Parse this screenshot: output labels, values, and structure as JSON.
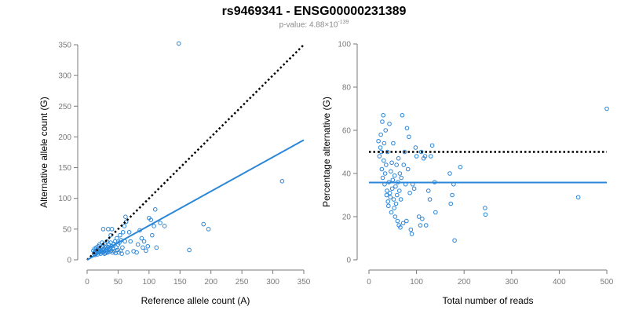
{
  "title": "rs9469341 - ENSG00000231389",
  "subtitle": {
    "prefix": "p-value: ",
    "mantissa": "4.88",
    "times": "×",
    "base": "10",
    "exponent": "-139"
  },
  "colors": {
    "points": "#2a86d8",
    "fit_line": "#2a86d8",
    "reference_line": "#000000",
    "axis": "#7a7a7a",
    "tick_label": "#7a7a7a"
  },
  "chart_data": [
    {
      "type": "scatter",
      "title": "",
      "xlabel": "Reference allele count (A)",
      "ylabel": "Alternative allele count (G)",
      "xlim": [
        0,
        350
      ],
      "ylim": [
        0,
        350
      ],
      "xticks": [
        0,
        50,
        100,
        150,
        200,
        250,
        300,
        350
      ],
      "yticks": [
        0,
        50,
        100,
        150,
        200,
        250,
        300,
        350
      ],
      "grid": false,
      "reference_line": {
        "style": "dotted",
        "from": [
          0,
          0
        ],
        "to": [
          350,
          350
        ]
      },
      "fit_line": {
        "style": "solid",
        "from": [
          0,
          0
        ],
        "to": [
          350,
          195
        ]
      },
      "points": [
        [
          10,
          15
        ],
        [
          11,
          10
        ],
        [
          12,
          12
        ],
        [
          12,
          18
        ],
        [
          13,
          8
        ],
        [
          14,
          14
        ],
        [
          15,
          20
        ],
        [
          15,
          11
        ],
        [
          16,
          16
        ],
        [
          17,
          9
        ],
        [
          18,
          13
        ],
        [
          18,
          22
        ],
        [
          19,
          17
        ],
        [
          20,
          12
        ],
        [
          20,
          25
        ],
        [
          21,
          15
        ],
        [
          22,
          10
        ],
        [
          22,
          19
        ],
        [
          23,
          14
        ],
        [
          24,
          28
        ],
        [
          24,
          21
        ],
        [
          25,
          12
        ],
        [
          25,
          16
        ],
        [
          26,
          50
        ],
        [
          26,
          23
        ],
        [
          27,
          13
        ],
        [
          27,
          18
        ],
        [
          28,
          10
        ],
        [
          28,
          26
        ],
        [
          29,
          15
        ],
        [
          30,
          20
        ],
        [
          30,
          11
        ],
        [
          31,
          17
        ],
        [
          32,
          14
        ],
        [
          32,
          30
        ],
        [
          33,
          12
        ],
        [
          34,
          50
        ],
        [
          34,
          21
        ],
        [
          35,
          16
        ],
        [
          35,
          25
        ],
        [
          36,
          13
        ],
        [
          37,
          19
        ],
        [
          38,
          28
        ],
        [
          38,
          40
        ],
        [
          39,
          15
        ],
        [
          40,
          50
        ],
        [
          40,
          22
        ],
        [
          41,
          12
        ],
        [
          42,
          18
        ],
        [
          43,
          26
        ],
        [
          44,
          14
        ],
        [
          45,
          30
        ],
        [
          46,
          11
        ],
        [
          47,
          20
        ],
        [
          48,
          35
        ],
        [
          49,
          16
        ],
        [
          50,
          25
        ],
        [
          51,
          12
        ],
        [
          52,
          28
        ],
        [
          53,
          40
        ],
        [
          54,
          15
        ],
        [
          55,
          32
        ],
        [
          56,
          10
        ],
        [
          57,
          20
        ],
        [
          58,
          45
        ],
        [
          60,
          55
        ],
        [
          61,
          30
        ],
        [
          62,
          70
        ],
        [
          63,
          62
        ],
        [
          65,
          12
        ],
        [
          68,
          45
        ],
        [
          70,
          30
        ],
        [
          75,
          14
        ],
        [
          80,
          12
        ],
        [
          82,
          25
        ],
        [
          85,
          48
        ],
        [
          88,
          35
        ],
        [
          90,
          20
        ],
        [
          92,
          30
        ],
        [
          95,
          15
        ],
        [
          98,
          22
        ],
        [
          100,
          68
        ],
        [
          103,
          65
        ],
        [
          105,
          40
        ],
        [
          108,
          55
        ],
        [
          110,
          82
        ],
        [
          112,
          20
        ],
        [
          118,
          60
        ],
        [
          125,
          55
        ],
        [
          148,
          352
        ],
        [
          165,
          16
        ],
        [
          188,
          58
        ],
        [
          196,
          50
        ],
        [
          315,
          128
        ]
      ]
    },
    {
      "type": "scatter",
      "title": "",
      "xlabel": "Total number of reads",
      "ylabel": "Percentage alternative (G)",
      "xlim": [
        0,
        500
      ],
      "ylim": [
        0,
        100
      ],
      "xticks": [
        0,
        100,
        200,
        300,
        400,
        500
      ],
      "yticks": [
        0,
        20,
        40,
        60,
        80,
        100
      ],
      "grid": false,
      "reference_line": {
        "style": "dotted",
        "y": 50
      },
      "fit_line": {
        "style": "solid",
        "y": 35.8
      },
      "points": [
        [
          20,
          55
        ],
        [
          22,
          48
        ],
        [
          24,
          52
        ],
        [
          25,
          58
        ],
        [
          26,
          50
        ],
        [
          27,
          42
        ],
        [
          28,
          64
        ],
        [
          29,
          38
        ],
        [
          30,
          67
        ],
        [
          31,
          46
        ],
        [
          32,
          54
        ],
        [
          33,
          35
        ],
        [
          34,
          40
        ],
        [
          35,
          60
        ],
        [
          36,
          44
        ],
        [
          37,
          30
        ],
        [
          38,
          32
        ],
        [
          39,
          50
        ],
        [
          40,
          27
        ],
        [
          41,
          25
        ],
        [
          42,
          36
        ],
        [
          43,
          63
        ],
        [
          44,
          31
        ],
        [
          45,
          29
        ],
        [
          46,
          41
        ],
        [
          47,
          22
        ],
        [
          48,
          45
        ],
        [
          49,
          33
        ],
        [
          50,
          37
        ],
        [
          51,
          54
        ],
        [
          52,
          28
        ],
        [
          53,
          24
        ],
        [
          54,
          39
        ],
        [
          55,
          20
        ],
        [
          56,
          34
        ],
        [
          57,
          26
        ],
        [
          58,
          44
        ],
        [
          59,
          30
        ],
        [
          60,
          18
        ],
        [
          61,
          36
        ],
        [
          62,
          47
        ],
        [
          63,
          16
        ],
        [
          64,
          32
        ],
        [
          65,
          40
        ],
        [
          66,
          15
        ],
        [
          67,
          28
        ],
        [
          68,
          38
        ],
        [
          70,
          67
        ],
        [
          72,
          17
        ],
        [
          73,
          44
        ],
        [
          75,
          50
        ],
        [
          77,
          35
        ],
        [
          79,
          18
        ],
        [
          80,
          61
        ],
        [
          82,
          42
        ],
        [
          84,
          57
        ],
        [
          86,
          31
        ],
        [
          88,
          14
        ],
        [
          90,
          12
        ],
        [
          92,
          35
        ],
        [
          95,
          33
        ],
        [
          98,
          52
        ],
        [
          100,
          48
        ],
        [
          105,
          20
        ],
        [
          108,
          16
        ],
        [
          110,
          50
        ],
        [
          112,
          19
        ],
        [
          115,
          47
        ],
        [
          118,
          48
        ],
        [
          120,
          16
        ],
        [
          125,
          32
        ],
        [
          128,
          28
        ],
        [
          130,
          48
        ],
        [
          133,
          53
        ],
        [
          138,
          36
        ],
        [
          140,
          22
        ],
        [
          170,
          40
        ],
        [
          172,
          26
        ],
        [
          175,
          30
        ],
        [
          178,
          35
        ],
        [
          180,
          9
        ],
        [
          192,
          43
        ],
        [
          244,
          24
        ],
        [
          245,
          21
        ],
        [
          440,
          29
        ],
        [
          500,
          70
        ]
      ]
    }
  ]
}
